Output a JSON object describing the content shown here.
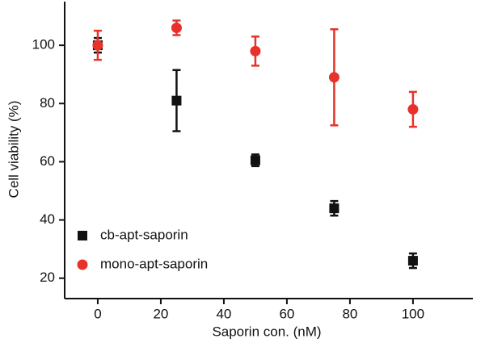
{
  "chart_data": {
    "type": "scatter",
    "x_label": "Saporin con. (nM)",
    "y_label": "Cell viability (%)",
    "xlim": [
      -10.5,
      119
    ],
    "ylim": [
      13,
      115
    ],
    "xticks": [
      0,
      20,
      40,
      60,
      80,
      100
    ],
    "yticks": [
      20,
      40,
      60,
      80,
      100
    ],
    "legend": "lower left",
    "series": [
      {
        "name": "cb-apt-saporin",
        "color": "#111111",
        "marker": "square",
        "x": [
          0,
          25,
          50,
          75,
          100
        ],
        "values": [
          100,
          81,
          60.5,
          44,
          26
        ],
        "errors": [
          2.5,
          10.5,
          2,
          2.5,
          2.5
        ]
      },
      {
        "name": "mono-apt-saporin",
        "color": "#e8312b",
        "marker": "circle",
        "x": [
          0,
          25,
          50,
          75,
          100
        ],
        "values": [
          100,
          106,
          98,
          89,
          78
        ],
        "errors": [
          5,
          2.5,
          5,
          16.5,
          6
        ]
      }
    ]
  }
}
